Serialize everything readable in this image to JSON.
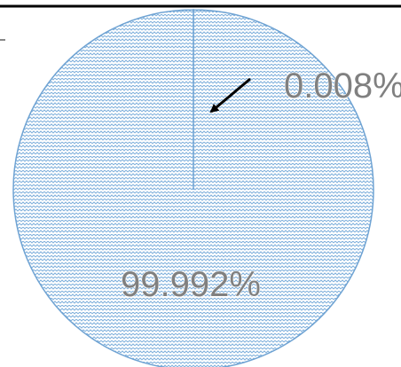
{
  "chart_data": {
    "type": "pie",
    "slices": [
      {
        "label": "0.008%",
        "value": 0.008
      },
      {
        "label": "99.992%",
        "value": 99.992
      }
    ],
    "title": "",
    "legend": "none",
    "colors": {
      "fill_base": "#ffffff",
      "pattern_stroke": "#7fb0dc",
      "slice_border": "#6fa3d3",
      "label": "#808080",
      "arrow": "#000000",
      "frame_line": "#000000"
    }
  }
}
